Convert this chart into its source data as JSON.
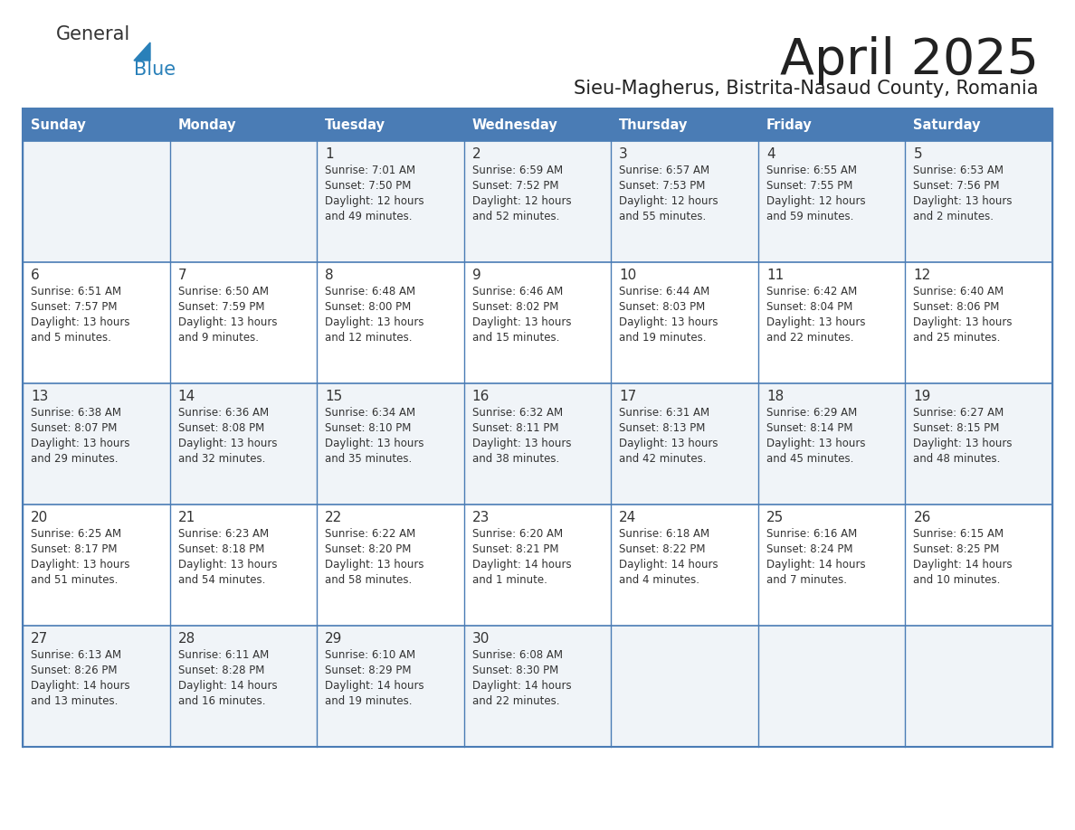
{
  "title": "April 2025",
  "subtitle": "Sieu-Magherus, Bistrita-Nasaud County, Romania",
  "days_of_week": [
    "Sunday",
    "Monday",
    "Tuesday",
    "Wednesday",
    "Thursday",
    "Friday",
    "Saturday"
  ],
  "header_bg": "#4a7cb5",
  "header_text": "#FFFFFF",
  "row_bg_even": "#f0f4f8",
  "row_bg_odd": "#FFFFFF",
  "border_color": "#4a7cb5",
  "text_color": "#333333",
  "title_color": "#222222",
  "subtitle_color": "#222222",
  "logo_general_color": "#333333",
  "logo_blue_color": "#2980B9",
  "calendar_data": [
    [
      {
        "day": "",
        "sunrise": "",
        "sunset": "",
        "daylight": ""
      },
      {
        "day": "",
        "sunrise": "",
        "sunset": "",
        "daylight": ""
      },
      {
        "day": "1",
        "sunrise": "Sunrise: 7:01 AM",
        "sunset": "Sunset: 7:50 PM",
        "daylight": "Daylight: 12 hours\nand 49 minutes."
      },
      {
        "day": "2",
        "sunrise": "Sunrise: 6:59 AM",
        "sunset": "Sunset: 7:52 PM",
        "daylight": "Daylight: 12 hours\nand 52 minutes."
      },
      {
        "day": "3",
        "sunrise": "Sunrise: 6:57 AM",
        "sunset": "Sunset: 7:53 PM",
        "daylight": "Daylight: 12 hours\nand 55 minutes."
      },
      {
        "day": "4",
        "sunrise": "Sunrise: 6:55 AM",
        "sunset": "Sunset: 7:55 PM",
        "daylight": "Daylight: 12 hours\nand 59 minutes."
      },
      {
        "day": "5",
        "sunrise": "Sunrise: 6:53 AM",
        "sunset": "Sunset: 7:56 PM",
        "daylight": "Daylight: 13 hours\nand 2 minutes."
      }
    ],
    [
      {
        "day": "6",
        "sunrise": "Sunrise: 6:51 AM",
        "sunset": "Sunset: 7:57 PM",
        "daylight": "Daylight: 13 hours\nand 5 minutes."
      },
      {
        "day": "7",
        "sunrise": "Sunrise: 6:50 AM",
        "sunset": "Sunset: 7:59 PM",
        "daylight": "Daylight: 13 hours\nand 9 minutes."
      },
      {
        "day": "8",
        "sunrise": "Sunrise: 6:48 AM",
        "sunset": "Sunset: 8:00 PM",
        "daylight": "Daylight: 13 hours\nand 12 minutes."
      },
      {
        "day": "9",
        "sunrise": "Sunrise: 6:46 AM",
        "sunset": "Sunset: 8:02 PM",
        "daylight": "Daylight: 13 hours\nand 15 minutes."
      },
      {
        "day": "10",
        "sunrise": "Sunrise: 6:44 AM",
        "sunset": "Sunset: 8:03 PM",
        "daylight": "Daylight: 13 hours\nand 19 minutes."
      },
      {
        "day": "11",
        "sunrise": "Sunrise: 6:42 AM",
        "sunset": "Sunset: 8:04 PM",
        "daylight": "Daylight: 13 hours\nand 22 minutes."
      },
      {
        "day": "12",
        "sunrise": "Sunrise: 6:40 AM",
        "sunset": "Sunset: 8:06 PM",
        "daylight": "Daylight: 13 hours\nand 25 minutes."
      }
    ],
    [
      {
        "day": "13",
        "sunrise": "Sunrise: 6:38 AM",
        "sunset": "Sunset: 8:07 PM",
        "daylight": "Daylight: 13 hours\nand 29 minutes."
      },
      {
        "day": "14",
        "sunrise": "Sunrise: 6:36 AM",
        "sunset": "Sunset: 8:08 PM",
        "daylight": "Daylight: 13 hours\nand 32 minutes."
      },
      {
        "day": "15",
        "sunrise": "Sunrise: 6:34 AM",
        "sunset": "Sunset: 8:10 PM",
        "daylight": "Daylight: 13 hours\nand 35 minutes."
      },
      {
        "day": "16",
        "sunrise": "Sunrise: 6:32 AM",
        "sunset": "Sunset: 8:11 PM",
        "daylight": "Daylight: 13 hours\nand 38 minutes."
      },
      {
        "day": "17",
        "sunrise": "Sunrise: 6:31 AM",
        "sunset": "Sunset: 8:13 PM",
        "daylight": "Daylight: 13 hours\nand 42 minutes."
      },
      {
        "day": "18",
        "sunrise": "Sunrise: 6:29 AM",
        "sunset": "Sunset: 8:14 PM",
        "daylight": "Daylight: 13 hours\nand 45 minutes."
      },
      {
        "day": "19",
        "sunrise": "Sunrise: 6:27 AM",
        "sunset": "Sunset: 8:15 PM",
        "daylight": "Daylight: 13 hours\nand 48 minutes."
      }
    ],
    [
      {
        "day": "20",
        "sunrise": "Sunrise: 6:25 AM",
        "sunset": "Sunset: 8:17 PM",
        "daylight": "Daylight: 13 hours\nand 51 minutes."
      },
      {
        "day": "21",
        "sunrise": "Sunrise: 6:23 AM",
        "sunset": "Sunset: 8:18 PM",
        "daylight": "Daylight: 13 hours\nand 54 minutes."
      },
      {
        "day": "22",
        "sunrise": "Sunrise: 6:22 AM",
        "sunset": "Sunset: 8:20 PM",
        "daylight": "Daylight: 13 hours\nand 58 minutes."
      },
      {
        "day": "23",
        "sunrise": "Sunrise: 6:20 AM",
        "sunset": "Sunset: 8:21 PM",
        "daylight": "Daylight: 14 hours\nand 1 minute."
      },
      {
        "day": "24",
        "sunrise": "Sunrise: 6:18 AM",
        "sunset": "Sunset: 8:22 PM",
        "daylight": "Daylight: 14 hours\nand 4 minutes."
      },
      {
        "day": "25",
        "sunrise": "Sunrise: 6:16 AM",
        "sunset": "Sunset: 8:24 PM",
        "daylight": "Daylight: 14 hours\nand 7 minutes."
      },
      {
        "day": "26",
        "sunrise": "Sunrise: 6:15 AM",
        "sunset": "Sunset: 8:25 PM",
        "daylight": "Daylight: 14 hours\nand 10 minutes."
      }
    ],
    [
      {
        "day": "27",
        "sunrise": "Sunrise: 6:13 AM",
        "sunset": "Sunset: 8:26 PM",
        "daylight": "Daylight: 14 hours\nand 13 minutes."
      },
      {
        "day": "28",
        "sunrise": "Sunrise: 6:11 AM",
        "sunset": "Sunset: 8:28 PM",
        "daylight": "Daylight: 14 hours\nand 16 minutes."
      },
      {
        "day": "29",
        "sunrise": "Sunrise: 6:10 AM",
        "sunset": "Sunset: 8:29 PM",
        "daylight": "Daylight: 14 hours\nand 19 minutes."
      },
      {
        "day": "30",
        "sunrise": "Sunrise: 6:08 AM",
        "sunset": "Sunset: 8:30 PM",
        "daylight": "Daylight: 14 hours\nand 22 minutes."
      },
      {
        "day": "",
        "sunrise": "",
        "sunset": "",
        "daylight": ""
      },
      {
        "day": "",
        "sunrise": "",
        "sunset": "",
        "daylight": ""
      },
      {
        "day": "",
        "sunrise": "",
        "sunset": "",
        "daylight": ""
      }
    ]
  ]
}
